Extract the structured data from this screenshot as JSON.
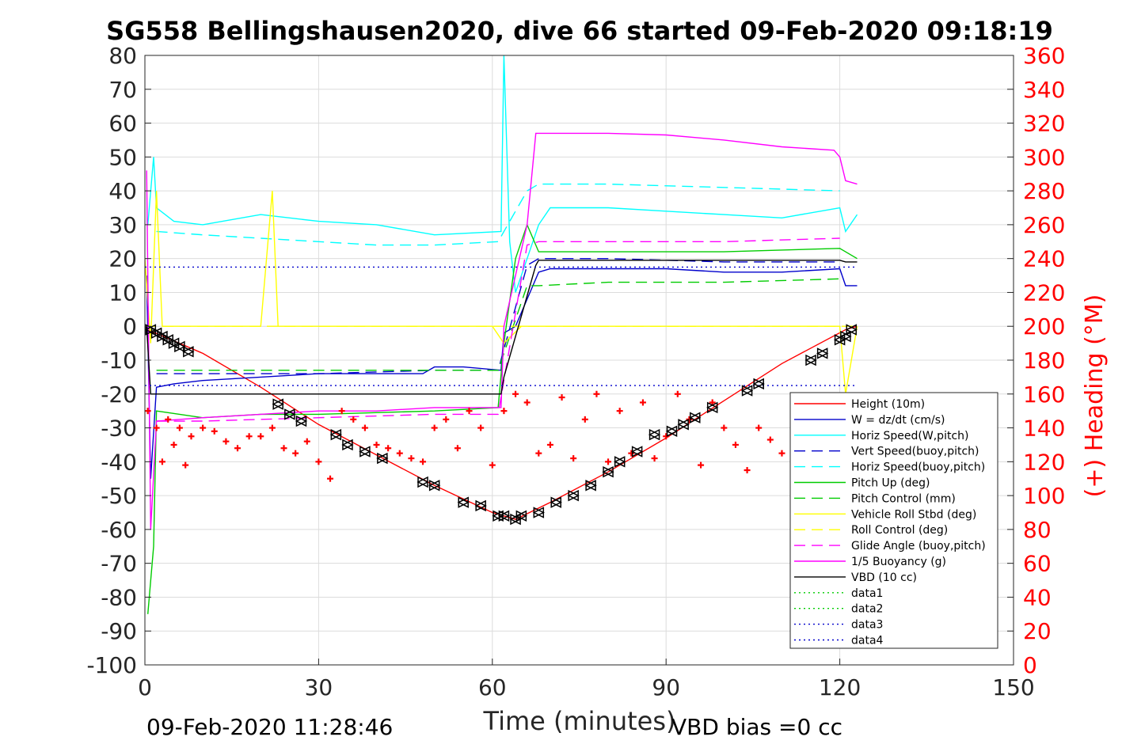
{
  "chart_data": {
    "type": "line",
    "title": "SG558 Bellingshausen2020, dive 66 started 09-Feb-2020 09:18:19",
    "xlabel": "Time (minutes)",
    "ylabel_right": "(+) Heading (°M)",
    "xlim": [
      0,
      150
    ],
    "ylim_left": [
      -100,
      80
    ],
    "ylim_right": [
      0,
      360
    ],
    "x_ticks": [
      "0",
      "30",
      "60",
      "90",
      "120",
      "150"
    ],
    "y_ticks_left": [
      "80",
      "70",
      "60",
      "50",
      "40",
      "30",
      "20",
      "10",
      "0",
      "-10",
      "-20",
      "-30",
      "-40",
      "-50",
      "-60",
      "-70",
      "-80",
      "-90",
      "-100"
    ],
    "y_ticks_right": [
      "360",
      "340",
      "320",
      "300",
      "280",
      "260",
      "240",
      "220",
      "200",
      "180",
      "160",
      "140",
      "120",
      "100",
      "80",
      "60",
      "40",
      "20",
      "0"
    ],
    "grid": true,
    "legend_position": "bottom-right",
    "footer_left": "09-Feb-2020 11:28:46",
    "footer_right": "VBD bias =0 cc",
    "series": [
      {
        "name": "Height (10m)",
        "color": "#ff0000",
        "dash": "solid",
        "x": [
          0.5,
          10,
          20,
          30,
          40,
          50,
          60,
          64,
          70,
          80,
          90,
          100,
          110,
          121,
          123
        ],
        "y": [
          -1,
          -8,
          -18,
          -29,
          -38,
          -47,
          -55,
          -57,
          -52,
          -43,
          -33,
          -22,
          -11,
          -1,
          0
        ]
      },
      {
        "name": "W = dz/dt (cm/s)",
        "color": "#0000cc",
        "dash": "solid",
        "x": [
          0.3,
          1,
          2,
          5,
          10,
          20,
          30,
          40,
          48,
          50,
          55,
          61.5,
          62,
          64,
          66,
          68,
          70,
          80,
          90,
          100,
          110,
          120,
          121,
          123
        ],
        "y": [
          15,
          -45,
          -18,
          -17,
          -16,
          -15,
          -14,
          -14,
          -14,
          -12,
          -12,
          -13,
          -2,
          0,
          8,
          16,
          17,
          17,
          17,
          16,
          16,
          17,
          12,
          12
        ]
      },
      {
        "name": "Horiz Speed(W,pitch)",
        "color": "#00ffff",
        "dash": "solid",
        "x": [
          0.5,
          1.5,
          2,
          5,
          10,
          20,
          30,
          40,
          50,
          61.5,
          62,
          63,
          64,
          66,
          68,
          70,
          80,
          90,
          100,
          110,
          120,
          121,
          123
        ],
        "y": [
          30,
          50,
          35,
          31,
          30,
          33,
          31,
          30,
          27,
          28,
          80,
          25,
          10,
          20,
          30,
          35,
          35,
          34,
          33,
          32,
          35,
          28,
          33
        ]
      },
      {
        "name": "Vert Speed(buoy,pitch)",
        "color": "#0000cc",
        "dash": "dashed",
        "x": [
          2,
          10,
          30,
          50,
          61,
          66,
          68,
          80,
          100,
          120
        ],
        "y": [
          -14,
          -14,
          -14,
          -13,
          -13,
          18,
          20,
          20,
          19,
          19
        ]
      },
      {
        "name": "Horiz Speed(buoy,pitch)",
        "color": "#00ffff",
        "dash": "dashed",
        "x": [
          2,
          10,
          20,
          30,
          40,
          50,
          61,
          66,
          68,
          80,
          100,
          120
        ],
        "y": [
          28,
          27,
          26,
          25,
          24,
          24,
          25,
          40,
          42,
          42,
          41,
          40
        ]
      },
      {
        "name": "Pitch Up (deg)",
        "color": "#00cc00",
        "dash": "solid",
        "x": [
          0.5,
          1.5,
          2,
          10,
          20,
          30,
          50,
          61,
          62,
          64,
          66,
          68,
          80,
          100,
          120,
          123
        ],
        "y": [
          -85,
          -65,
          -25,
          -27,
          -26,
          -26,
          -25,
          -24,
          -5,
          20,
          30,
          22,
          22,
          22,
          23,
          20
        ]
      },
      {
        "name": "Pitch Control (mm)",
        "color": "#00cc00",
        "dash": "dashed",
        "x": [
          2,
          10,
          30,
          50,
          61,
          66,
          68,
          80,
          100,
          120
        ],
        "y": [
          -13,
          -13,
          -13,
          -13,
          -13,
          12,
          12,
          13,
          13,
          14
        ]
      },
      {
        "name": "Vehicle Roll Stbd (deg)",
        "color": "#ffff00",
        "dash": "solid",
        "x": [
          0,
          1,
          2,
          3,
          5,
          10,
          20,
          22,
          23,
          25,
          30,
          35,
          40,
          45,
          50,
          55,
          60,
          62,
          65,
          70,
          80,
          90,
          100,
          110,
          120,
          121,
          123
        ],
        "y": [
          20,
          -5,
          40,
          0,
          0,
          0,
          0,
          40,
          0,
          0,
          0,
          0,
          0,
          0,
          0,
          0,
          0,
          -5,
          0,
          0,
          0,
          0,
          0,
          0,
          0,
          -20,
          0
        ]
      },
      {
        "name": "Roll Control (deg)",
        "color": "#ffff00",
        "dash": "dashed",
        "x": [
          0,
          30,
          60,
          90,
          123
        ],
        "y": [
          0,
          0,
          0,
          0,
          0
        ]
      },
      {
        "name": "Glide Angle (buoy,pitch)",
        "color": "#ff00ff",
        "dash": "dashed",
        "x": [
          2,
          10,
          30,
          50,
          61,
          66,
          68,
          80,
          100,
          120
        ],
        "y": [
          -28,
          -28,
          -27,
          -26,
          -26,
          24,
          25,
          25,
          25,
          26
        ]
      },
      {
        "name": "1/5 Buoyancy (g)",
        "color": "#ff00ff",
        "dash": "solid",
        "x": [
          0.3,
          1,
          2,
          10,
          20,
          30,
          40,
          50,
          61.5,
          62,
          66,
          67.5,
          68,
          80,
          90,
          100,
          110,
          119,
          120,
          121,
          123
        ],
        "y": [
          46,
          -60,
          -28,
          -27,
          -26,
          -25,
          -25,
          -24,
          -24,
          0,
          30,
          57,
          57,
          57,
          56.5,
          55,
          53,
          52,
          50,
          43,
          42
        ]
      },
      {
        "name": "VBD (10 cc)",
        "color": "#000000",
        "dash": "solid",
        "x": [
          0.3,
          1,
          2,
          60,
          61.5,
          62,
          67.5,
          68,
          120,
          121,
          123
        ],
        "y": [
          0,
          -20,
          -20,
          -20,
          -20,
          -15,
          18,
          19.5,
          19.5,
          19,
          19
        ]
      },
      {
        "name": "data1",
        "color": "#00cc00",
        "dash": "dotted",
        "x": [],
        "y": []
      },
      {
        "name": "data2",
        "color": "#00cc00",
        "dash": "dotted",
        "x": [],
        "y": []
      },
      {
        "name": "data3",
        "color": "#0000cc",
        "dash": "dotted",
        "x": [
          0,
          123
        ],
        "y": [
          17.5,
          17.5
        ]
      },
      {
        "name": "data4",
        "color": "#0000cc",
        "dash": "dotted",
        "x": [
          0,
          123
        ],
        "y": [
          -17.5,
          -17.5
        ]
      }
    ],
    "heading_points": {
      "color": "#ff0000",
      "x": [
        0.5,
        2,
        3,
        4,
        5,
        6,
        7,
        8,
        10,
        12,
        14,
        16,
        18,
        20,
        22,
        24,
        26,
        28,
        30,
        32,
        34,
        36,
        38,
        40,
        42,
        44,
        46,
        48,
        50,
        52,
        54,
        56,
        58,
        60,
        62,
        64,
        66,
        68,
        70,
        72,
        74,
        76,
        78,
        80,
        82,
        84,
        86,
        88,
        90,
        92,
        94,
        96,
        98,
        100,
        102,
        104,
        106,
        108,
        110,
        112
      ],
      "y": [
        150,
        140,
        120,
        145,
        130,
        140,
        118,
        135,
        140,
        138,
        132,
        128,
        135,
        135,
        140,
        128,
        125,
        132,
        120,
        110,
        150,
        145,
        140,
        130,
        128,
        125,
        122,
        120,
        140,
        145,
        128,
        150,
        140,
        118,
        150,
        160,
        155,
        125,
        130,
        158,
        122,
        145,
        160,
        120,
        150,
        125,
        155,
        122,
        135,
        160,
        145,
        118,
        155,
        140,
        130,
        115,
        140,
        133,
        125,
        130
      ]
    },
    "gps_markers": {
      "color": "#000000",
      "x": [
        1,
        2,
        3,
        4,
        5,
        6,
        7.5,
        23,
        25,
        27,
        33,
        35,
        38,
        41,
        48,
        50,
        55,
        58,
        61,
        62,
        64,
        65,
        68,
        71,
        74,
        77,
        80,
        82,
        85,
        88,
        91,
        93,
        95,
        98,
        104,
        106,
        115,
        117,
        120,
        121,
        122
      ],
      "y": [
        -1,
        -2,
        -3,
        -4,
        -5,
        -6,
        -7.5,
        -23,
        -26,
        -28,
        -32,
        -35,
        -37,
        -39,
        -46,
        -47,
        -52,
        -53,
        -56,
        -56,
        -57,
        -56,
        -55,
        -52,
        -50,
        -47,
        -43,
        -40,
        -37,
        -32,
        -31,
        -29,
        -27,
        -24,
        -19,
        -17,
        -10,
        -8,
        -4,
        -3,
        -1
      ]
    }
  }
}
